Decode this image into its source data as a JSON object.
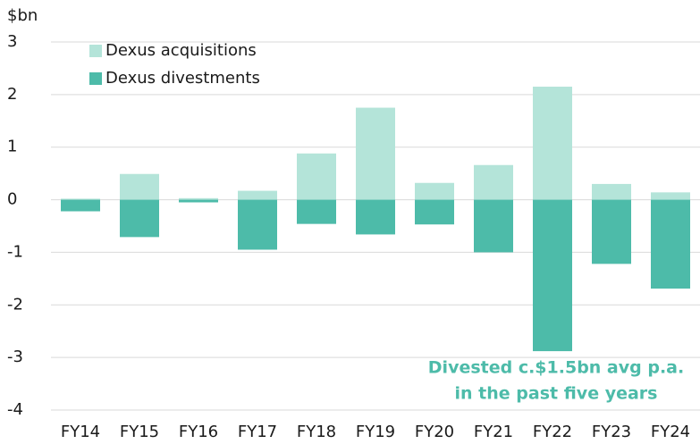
{
  "chart_data": {
    "type": "bar",
    "stacked": true,
    "ylabel": "$bn",
    "categories": [
      "FY14",
      "FY15",
      "FY16",
      "FY17",
      "FY18",
      "FY19",
      "FY20",
      "FY21",
      "FY22",
      "FY23",
      "FY24"
    ],
    "series": [
      {
        "name": "Dexus acquisitions",
        "color": "#b4e4d9",
        "values": [
          0.02,
          0.49,
          0.03,
          0.17,
          0.88,
          1.75,
          0.32,
          0.66,
          2.15,
          0.3,
          0.14
        ]
      },
      {
        "name": "Dexus divestments",
        "color": "#4dbba9",
        "values": [
          -0.22,
          -0.71,
          -0.05,
          -0.95,
          -0.46,
          -0.66,
          -0.47,
          -1.0,
          -2.88,
          -1.22,
          -1.69
        ]
      }
    ],
    "ylim": [
      -4,
      3
    ],
    "yticks": [
      -4,
      -3,
      -2,
      -1,
      0,
      1,
      2,
      3
    ],
    "grid": true,
    "legend": "top-left",
    "annotation": {
      "lines": [
        "Divested c.$1.5bn avg p.a.",
        "in the past five years"
      ],
      "color": "#4dbba9"
    }
  }
}
